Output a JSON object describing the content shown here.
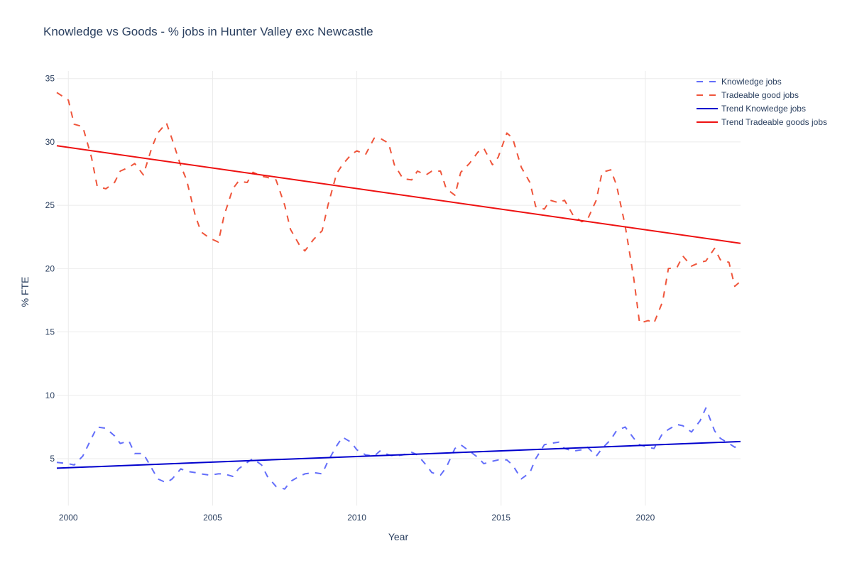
{
  "chart_data": {
    "type": "line",
    "title": "Knowledge vs Goods - % jobs in Hunter Valley exc Newcastle",
    "xlabel": "Year",
    "ylabel": "% FTE",
    "xlim": [
      1999.6,
      2023.3
    ],
    "ylim": [
      1.3,
      35.6
    ],
    "x_ticks": [
      2000,
      2005,
      2010,
      2015,
      2020
    ],
    "y_ticks": [
      5,
      10,
      15,
      20,
      25,
      30,
      35
    ],
    "grid": true,
    "legend_position": "top-right",
    "series": [
      {
        "name": "Knowledge jobs",
        "color": "#636efa",
        "dash": "dash",
        "x": [
          1999.6,
          2000.0,
          2000.2,
          2000.5,
          2000.8,
          2001.0,
          2001.3,
          2001.6,
          2001.8,
          2002.1,
          2002.3,
          2002.6,
          2002.9,
          2003.1,
          2003.4,
          2003.6,
          2003.9,
          2004.1,
          2004.4,
          2004.6,
          2004.9,
          2005.2,
          2005.4,
          2005.7,
          2005.9,
          2006.2,
          2006.4,
          2006.7,
          2006.9,
          2007.2,
          2007.5,
          2007.7,
          2008.0,
          2008.2,
          2008.5,
          2008.8,
          2009.0,
          2009.3,
          2009.5,
          2009.8,
          2010.0,
          2010.3,
          2010.6,
          2010.8,
          2011.1,
          2011.3,
          2011.6,
          2011.9,
          2012.1,
          2012.4,
          2012.6,
          2012.9,
          2013.1,
          2013.4,
          2013.6,
          2013.9,
          2014.2,
          2014.4,
          2014.7,
          2014.9,
          2015.2,
          2015.4,
          2015.7,
          2016.0,
          2016.2,
          2016.5,
          2016.7,
          2017.0,
          2017.2,
          2017.5,
          2017.8,
          2018.0,
          2018.3,
          2018.5,
          2018.8,
          2019.0,
          2019.3,
          2019.6,
          2019.8,
          2020.1,
          2020.3,
          2020.6,
          2020.8,
          2021.1,
          2021.3,
          2021.6,
          2021.9,
          2022.1,
          2022.4,
          2022.6,
          2022.9,
          2023.1,
          2023.3
        ],
        "y": [
          4.7,
          4.6,
          4.5,
          5.2,
          6.6,
          7.5,
          7.4,
          6.8,
          6.2,
          6.4,
          5.4,
          5.4,
          4.2,
          3.4,
          3.1,
          3.4,
          4.2,
          4.0,
          3.9,
          3.8,
          3.7,
          3.8,
          3.8,
          3.6,
          4.2,
          4.7,
          5.0,
          4.5,
          3.6,
          2.8,
          2.6,
          3.2,
          3.6,
          3.8,
          3.9,
          3.8,
          4.8,
          6.0,
          6.7,
          6.3,
          5.7,
          5.3,
          5.2,
          5.6,
          5.3,
          5.2,
          5.3,
          5.5,
          5.3,
          4.5,
          3.9,
          3.7,
          4.3,
          5.8,
          6.1,
          5.6,
          5.1,
          4.6,
          4.8,
          4.9,
          4.9,
          4.5,
          3.4,
          3.9,
          5.0,
          6.1,
          6.2,
          6.3,
          5.8,
          5.6,
          5.7,
          5.9,
          5.2,
          5.8,
          6.5,
          7.2,
          7.5,
          6.6,
          6.1,
          5.9,
          5.8,
          7.0,
          7.3,
          7.7,
          7.6,
          7.1,
          8.0,
          9.0,
          7.2,
          6.6,
          6.2,
          5.9,
          6.1
        ]
      },
      {
        "name": "Tradeable good jobs",
        "color": "#ef553b",
        "dash": "dash",
        "x": [
          1999.6,
          2000.0,
          2000.2,
          2000.5,
          2000.8,
          2001.0,
          2001.3,
          2001.6,
          2001.8,
          2002.1,
          2002.3,
          2002.6,
          2002.9,
          2003.1,
          2003.4,
          2003.6,
          2003.9,
          2004.1,
          2004.4,
          2004.6,
          2004.9,
          2005.2,
          2005.4,
          2005.7,
          2005.9,
          2006.2,
          2006.4,
          2006.7,
          2006.9,
          2007.2,
          2007.5,
          2007.7,
          2008.0,
          2008.2,
          2008.5,
          2008.8,
          2009.0,
          2009.3,
          2009.5,
          2009.8,
          2010.0,
          2010.3,
          2010.6,
          2010.8,
          2011.1,
          2011.3,
          2011.6,
          2011.9,
          2012.1,
          2012.4,
          2012.6,
          2012.9,
          2013.1,
          2013.4,
          2013.6,
          2013.9,
          2014.2,
          2014.4,
          2014.7,
          2014.9,
          2015.2,
          2015.4,
          2015.7,
          2016.0,
          2016.2,
          2016.5,
          2016.7,
          2017.0,
          2017.2,
          2017.5,
          2017.8,
          2018.0,
          2018.3,
          2018.5,
          2018.8,
          2019.0,
          2019.3,
          2019.6,
          2019.8,
          2020.1,
          2020.3,
          2020.6,
          2020.8,
          2021.1,
          2021.3,
          2021.6,
          2021.9,
          2022.1,
          2022.4,
          2022.6,
          2022.9,
          2023.1,
          2023.3
        ],
        "y": [
          33.9,
          33.3,
          31.4,
          31.2,
          28.8,
          26.5,
          26.3,
          26.8,
          27.7,
          28.0,
          28.3,
          27.4,
          29.6,
          30.7,
          31.5,
          30.2,
          28.1,
          27.0,
          24.2,
          22.9,
          22.4,
          22.1,
          24.2,
          26.3,
          26.9,
          26.8,
          27.6,
          27.3,
          27.2,
          27.0,
          25.0,
          23.1,
          21.9,
          21.4,
          22.3,
          23.0,
          25.0,
          27.5,
          28.2,
          29.0,
          29.3,
          29.0,
          30.3,
          30.3,
          29.9,
          28.2,
          27.1,
          27.0,
          27.7,
          27.4,
          27.7,
          27.7,
          26.3,
          25.8,
          27.6,
          28.3,
          29.2,
          29.5,
          28.2,
          28.8,
          30.7,
          30.3,
          28.0,
          26.8,
          24.9,
          24.7,
          25.4,
          25.2,
          25.4,
          24.2,
          23.7,
          23.9,
          25.4,
          27.6,
          27.8,
          26.6,
          23.4,
          19.2,
          15.7,
          15.9,
          15.7,
          17.4,
          20.0,
          20.1,
          21.0,
          20.2,
          20.5,
          20.6,
          21.6,
          20.7,
          20.5,
          18.6,
          19.0
        ]
      },
      {
        "name": "Trend Knowledge jobs",
        "color": "#0000cd",
        "dash": "solid",
        "x": [
          1999.6,
          2023.3
        ],
        "y": [
          4.25,
          6.35
        ]
      },
      {
        "name": "Trend Tradeable goods jobs",
        "color": "#ee1111",
        "dash": "solid",
        "x": [
          1999.6,
          2023.3
        ],
        "y": [
          29.7,
          22.0
        ]
      }
    ]
  }
}
